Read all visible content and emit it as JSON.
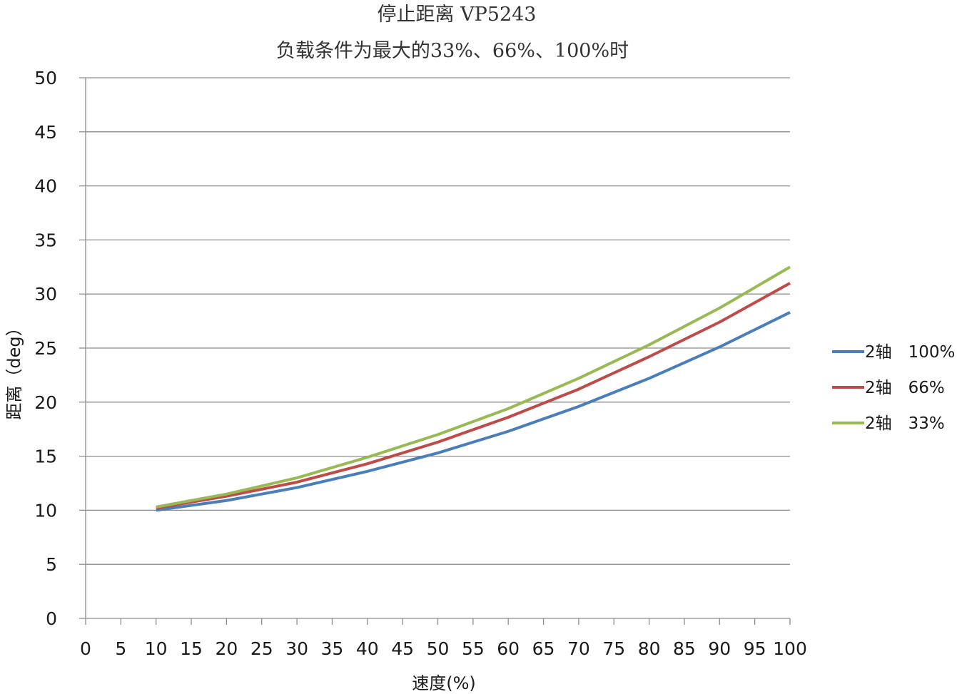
{
  "chart_data": {
    "type": "line",
    "title": "停止距离 VP5243",
    "subtitle": "负载条件为最大的33%、66%、100%时",
    "xlabel": "速度(%)",
    "ylabel": "距离（deg）",
    "xlim": [
      0,
      100
    ],
    "ylim": [
      0,
      50
    ],
    "x_ticks": [
      "0",
      "5",
      "10",
      "15",
      "20",
      "25",
      "30",
      "35",
      "40",
      "45",
      "50",
      "55",
      "60",
      "65",
      "70",
      "75",
      "80",
      "85",
      "90",
      "95",
      "100"
    ],
    "y_ticks": [
      "0",
      "5",
      "10",
      "15",
      "20",
      "25",
      "30",
      "35",
      "40",
      "45",
      "50"
    ],
    "grid": true,
    "legend_position": "right",
    "x": [
      10,
      20,
      30,
      40,
      50,
      60,
      70,
      80,
      90,
      100
    ],
    "series": [
      {
        "name": "2轴　100%",
        "color": "#4A7EBB",
        "values": [
          10.0,
          10.9,
          12.1,
          13.6,
          15.3,
          17.3,
          19.6,
          22.2,
          25.1,
          28.3
        ]
      },
      {
        "name": "2轴　66%",
        "color": "#BE4B48",
        "values": [
          10.2,
          11.3,
          12.6,
          14.3,
          16.3,
          18.6,
          21.2,
          24.2,
          27.4,
          31.0
        ]
      },
      {
        "name": "2轴　33%",
        "color": "#98B954",
        "values": [
          10.3,
          11.5,
          13.0,
          14.9,
          17.0,
          19.4,
          22.2,
          25.3,
          28.7,
          32.5
        ]
      }
    ]
  }
}
